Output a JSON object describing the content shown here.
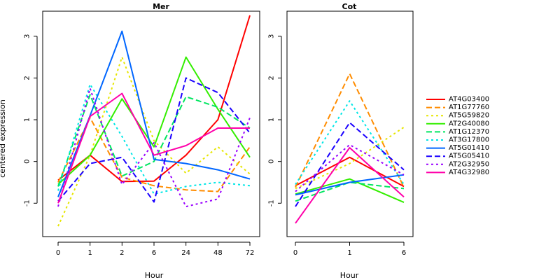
{
  "chart_data": [
    {
      "type": "line",
      "title": "Mer",
      "xlabel": "Hour",
      "ylabel": "centered expression",
      "categories": [
        "0",
        "1",
        "2",
        "6",
        "24",
        "48",
        "72"
      ],
      "ylim": [
        -1.8,
        3.6
      ],
      "yticks": [
        -1,
        0,
        1,
        2,
        3
      ],
      "series": [
        {
          "name": "AT4G03400",
          "values": [
            -0.45,
            0.15,
            -0.48,
            -0.47,
            0.15,
            1.0,
            3.5
          ]
        },
        {
          "name": "AT1G77760",
          "values": [
            -0.5,
            1.05,
            -0.38,
            -0.58,
            -0.68,
            -0.72,
            0.35
          ]
        },
        {
          "name": "AT5G59820",
          "values": [
            -1.55,
            0.15,
            2.5,
            0.5,
            -0.28,
            0.35,
            -0.3
          ]
        },
        {
          "name": "AT2G40080",
          "values": [
            -0.55,
            0.15,
            1.5,
            0.35,
            2.5,
            1.25,
            0.1
          ]
        },
        {
          "name": "AT1G12370",
          "values": [
            -0.6,
            1.6,
            -0.35,
            0.0,
            1.55,
            1.3,
            0.8
          ]
        },
        {
          "name": "AT3G17800",
          "values": [
            -0.7,
            1.85,
            0.6,
            -0.78,
            -0.6,
            -0.5,
            -0.58
          ]
        },
        {
          "name": "AT5G01410",
          "values": [
            -0.85,
            1.1,
            3.12,
            0.05,
            -0.05,
            -0.2,
            -0.42
          ]
        },
        {
          "name": "AT5G05410",
          "values": [
            -0.95,
            -0.05,
            0.1,
            -0.97,
            2.0,
            1.65,
            0.68
          ]
        },
        {
          "name": "AT2G32950",
          "values": [
            -1.08,
            1.75,
            -0.55,
            0.45,
            -1.08,
            -0.9,
            1.05
          ]
        },
        {
          "name": "AT4G32980",
          "values": [
            -1.0,
            1.08,
            1.63,
            0.15,
            0.38,
            0.8,
            0.8
          ]
        }
      ]
    },
    {
      "type": "line",
      "title": "Cot",
      "xlabel": "Hour",
      "ylabel": "",
      "categories": [
        "0",
        "1",
        "6"
      ],
      "ylim": [
        -1.8,
        3.6
      ],
      "yticks": [
        -1,
        0,
        1,
        2,
        3
      ],
      "series": [
        {
          "name": "AT4G03400",
          "values": [
            -0.58,
            0.1,
            -0.6
          ]
        },
        {
          "name": "AT1G77760",
          "values": [
            -0.62,
            2.1,
            -0.62
          ]
        },
        {
          "name": "AT5G59820",
          "values": [
            -0.65,
            -0.05,
            0.82
          ]
        },
        {
          "name": "AT2G40080",
          "values": [
            -0.78,
            -0.42,
            -0.98
          ]
        },
        {
          "name": "AT1G12370",
          "values": [
            -0.95,
            -0.5,
            -0.65
          ]
        },
        {
          "name": "AT3G17800",
          "values": [
            -0.55,
            1.45,
            -0.55
          ]
        },
        {
          "name": "AT5G01410",
          "values": [
            -0.8,
            -0.5,
            -0.32
          ]
        },
        {
          "name": "AT5G05410",
          "values": [
            -1.08,
            0.93,
            -0.2
          ]
        },
        {
          "name": "AT2G32950",
          "values": [
            -0.72,
            0.4,
            -0.32
          ]
        },
        {
          "name": "AT4G32980",
          "values": [
            -1.48,
            0.33,
            -0.85
          ]
        }
      ]
    }
  ],
  "legend": {
    "position": "right",
    "items": [
      {
        "label": "AT4G03400",
        "color": "#FF0000",
        "dash": "solid"
      },
      {
        "label": "AT1G77760",
        "color": "#FF8C00",
        "dash": "dashed"
      },
      {
        "label": "AT5G59820",
        "color": "#E6E600",
        "dash": "dotted"
      },
      {
        "label": "AT2G40080",
        "color": "#33EE00",
        "dash": "solid"
      },
      {
        "label": "AT1G12370",
        "color": "#00E660",
        "dash": "dashed"
      },
      {
        "label": "AT3G17800",
        "color": "#00E6E6",
        "dash": "dotted"
      },
      {
        "label": "AT5G01410",
        "color": "#0066FF",
        "dash": "solid"
      },
      {
        "label": "AT5G05410",
        "color": "#1A00FF",
        "dash": "dashed"
      },
      {
        "label": "AT2G32950",
        "color": "#9900FF",
        "dash": "dotted"
      },
      {
        "label": "AT4G32980",
        "color": "#FF00AA",
        "dash": "solid"
      }
    ]
  }
}
